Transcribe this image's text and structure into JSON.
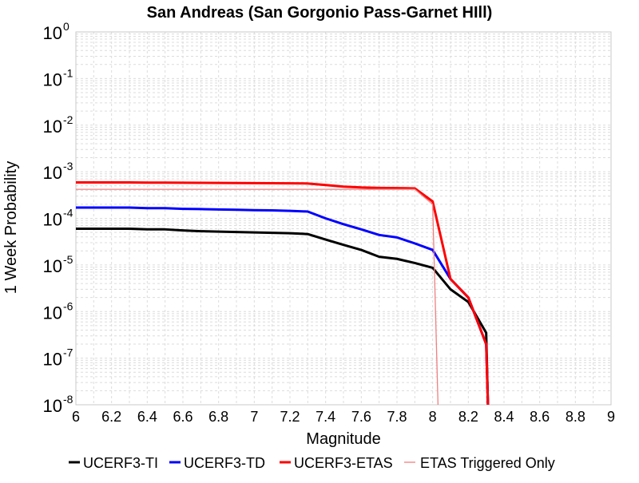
{
  "chart_data": {
    "type": "line",
    "title": "San Andreas (San Gorgonio Pass-Garnet HIll)",
    "xlabel": "Magnitude",
    "ylabel": "1 Week Probability",
    "xlim": [
      6,
      9
    ],
    "ylim": [
      1e-08,
      1
    ],
    "y_scale": "log",
    "grid": true,
    "legend_position": "bottom",
    "x_ticks": [
      6,
      6.2,
      6.4,
      6.6,
      6.8,
      7,
      7.2,
      7.4,
      7.6,
      7.8,
      8,
      8.2,
      8.4,
      8.6,
      8.8,
      9
    ],
    "x_tick_labels": [
      "6",
      "6.2",
      "6.4",
      "6.6",
      "6.8",
      "7",
      "7.2",
      "7.4",
      "7.6",
      "7.8",
      "8",
      "8.2",
      "8.4",
      "8.6",
      "8.8",
      "9"
    ],
    "y_ticks": [
      {
        "value": 1,
        "base": "10",
        "exp": "0"
      },
      {
        "value": 0.1,
        "base": "10",
        "exp": "-1"
      },
      {
        "value": 0.01,
        "base": "10",
        "exp": "-2"
      },
      {
        "value": 0.001,
        "base": "10",
        "exp": "-3"
      },
      {
        "value": 0.0001,
        "base": "10",
        "exp": "-4"
      },
      {
        "value": 1e-05,
        "base": "10",
        "exp": "-5"
      },
      {
        "value": 1e-06,
        "base": "10",
        "exp": "-6"
      },
      {
        "value": 1e-07,
        "base": "10",
        "exp": "-7"
      },
      {
        "value": 1e-08,
        "base": "10",
        "exp": "-8"
      }
    ],
    "series": [
      {
        "name": "UCERF3-TI",
        "color": "#000000",
        "x": [
          6.0,
          6.1,
          6.2,
          6.3,
          6.4,
          6.5,
          6.6,
          6.7,
          6.8,
          6.9,
          7.0,
          7.1,
          7.2,
          7.3,
          7.4,
          7.5,
          7.6,
          7.7,
          7.8,
          7.9,
          8.0,
          8.1,
          8.2,
          8.3,
          8.31
        ],
        "y": [
          6e-05,
          6e-05,
          6e-05,
          6e-05,
          5.8e-05,
          5.8e-05,
          5.5e-05,
          5.3e-05,
          5.2e-05,
          5.1e-05,
          5e-05,
          4.9e-05,
          4.8e-05,
          4.6e-05,
          3.5e-05,
          2.7e-05,
          2.1e-05,
          1.5e-05,
          1.35e-05,
          1.1e-05,
          8.7e-06,
          3e-06,
          1.6e-06,
          3.5e-07,
          1e-08
        ]
      },
      {
        "name": "UCERF3-TD",
        "color": "#0000ff",
        "x": [
          6.0,
          6.1,
          6.2,
          6.3,
          6.4,
          6.5,
          6.6,
          6.7,
          6.8,
          6.9,
          7.0,
          7.1,
          7.2,
          7.3,
          7.4,
          7.5,
          7.6,
          7.7,
          7.8,
          7.9,
          8.0,
          8.1,
          8.2,
          8.3,
          8.31
        ],
        "y": [
          0.00017,
          0.00017,
          0.00017,
          0.00017,
          0.000165,
          0.000165,
          0.00016,
          0.000158,
          0.000155,
          0.000153,
          0.00015,
          0.000148,
          0.000145,
          0.00014,
          0.0001,
          7.5e-05,
          5.8e-05,
          4.4e-05,
          3.9e-05,
          2.9e-05,
          2.1e-05,
          5e-06,
          2e-06,
          2e-07,
          1e-08
        ]
      },
      {
        "name": "UCERF3-ETAS",
        "color": "#ff0000",
        "x": [
          6.0,
          6.1,
          6.2,
          6.3,
          6.4,
          6.5,
          6.6,
          6.7,
          6.8,
          6.9,
          7.0,
          7.1,
          7.2,
          7.3,
          7.4,
          7.5,
          7.6,
          7.7,
          7.8,
          7.9,
          8.0,
          8.1,
          8.2,
          8.3,
          8.31
        ],
        "y": [
          0.00059,
          0.00059,
          0.00059,
          0.00059,
          0.000585,
          0.000585,
          0.00058,
          0.000578,
          0.000575,
          0.000572,
          0.00057,
          0.000568,
          0.000565,
          0.00056,
          0.00052,
          0.00048,
          0.00046,
          0.00045,
          0.000445,
          0.00044,
          0.00023,
          5e-06,
          2e-06,
          2e-07,
          1e-08
        ]
      },
      {
        "name": "ETAS Triggered Only",
        "color": "#f08080",
        "x": [
          6.0,
          7.9,
          8.0,
          8.03
        ],
        "y": [
          0.00042,
          0.00042,
          0.0002,
          1e-08
        ]
      }
    ]
  }
}
